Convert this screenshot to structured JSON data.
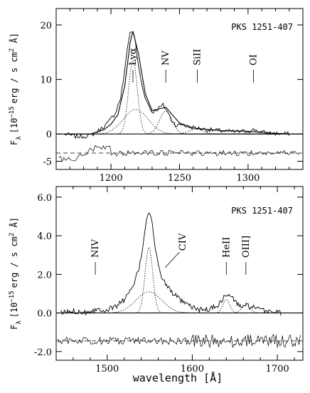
{
  "figure": {
    "xlabel": "wavelength [Å]"
  },
  "chart_data": [
    {
      "type": "line",
      "title": "PKS 1251-407",
      "ylabel_symbol": "F",
      "ylabel_sub": "λ",
      "ylabel_units": "[10",
      "ylabel_exp": "−15",
      "ylabel_rest": "erg / s cm",
      "ylabel_exp2": "2",
      "ylabel_end": " Å]",
      "xlim": [
        1160,
        1340
      ],
      "ylim": [
        -6.5,
        23
      ],
      "x_ticks": [
        1200,
        1250,
        1300
      ],
      "y_ticks": [
        20,
        10,
        0,
        -5
      ],
      "zero_line": 0,
      "residual_baseline": -3.5,
      "lines": [
        {
          "label": "Lyα",
          "x": 1216
        },
        {
          "label": "NV",
          "x": 1240
        },
        {
          "label": "SiII",
          "x": 1263
        },
        {
          "label": "OI",
          "x": 1304
        }
      ],
      "series": [
        {
          "x": [
            1166,
            1175,
            1185,
            1192,
            1198,
            1203,
            1207,
            1210,
            1212,
            1214,
            1216,
            1218,
            1220,
            1223,
            1226,
            1230,
            1234,
            1238,
            1241,
            1244,
            1248,
            1252,
            1256,
            1260,
            1265,
            1270,
            1280,
            1290,
            1300,
            1305,
            1310,
            1320,
            1330
          ],
          "values": [
            0,
            -0.5,
            -0.3,
            0.8,
            2.1,
            3.8,
            6.6,
            11.5,
            16.0,
            18.6,
            18.9,
            16.5,
            12.4,
            8.5,
            6.0,
            4.0,
            4.6,
            5.3,
            4.2,
            2.6,
            1.5,
            1.8,
            1.3,
            1.2,
            1.0,
            0.8,
            0.6,
            0.4,
            0.5,
            0.8,
            0.3,
            0.1,
            0
          ]
        },
        {
          "x": [
            1166,
            1185,
            1195,
            1200,
            1205,
            1210,
            1214,
            1216,
            1220,
            1225,
            1230,
            1240,
            1250,
            1260,
            1280,
            1300,
            1320,
            1330
          ],
          "values": [
            0,
            0,
            0.8,
            1.8,
            3.5,
            8.8,
            16.8,
            18.8,
            14.8,
            7.4,
            4.3,
            4.9,
            2.0,
            1.1,
            0.6,
            0.5,
            0.1,
            0
          ]
        }
      ]
    },
    {
      "type": "line",
      "title": "PKS 1251-407",
      "ylabel_symbol": "F",
      "ylabel_sub": "λ",
      "ylabel_units": "[10",
      "ylabel_exp": "−15",
      "ylabel_rest": "erg / s cm",
      "ylabel_exp2": "2",
      "ylabel_end": " Å]",
      "xlim": [
        1440,
        1730
      ],
      "ylim": [
        -2.45,
        6.55
      ],
      "x_ticks": [
        1500,
        1600,
        1700
      ],
      "y_ticks": [
        "6.0",
        "4.0",
        "2.0",
        "0.0",
        "-2.0"
      ],
      "zero_line": 0,
      "residual_baseline": -1.45,
      "lines": [
        {
          "label": "NIV",
          "x": 1486
        },
        {
          "label": "CIV",
          "x": 1549
        },
        {
          "label": "HeII",
          "x": 1640
        },
        {
          "label": "OIII]",
          "x": 1663
        }
      ],
      "series": [
        {
          "x": [
            1445,
            1460,
            1475,
            1490,
            1500,
            1510,
            1520,
            1530,
            1538,
            1543,
            1546,
            1549,
            1552,
            1556,
            1560,
            1565,
            1570,
            1580,
            1590,
            1600,
            1610,
            1620,
            1630,
            1637,
            1642,
            1648,
            1655,
            1662,
            1670,
            1680,
            1690,
            1700,
            1705
          ],
          "values": [
            0,
            0.1,
            0.05,
            0.2,
            0.15,
            0.35,
            0.7,
            1.3,
            2.4,
            3.8,
            4.9,
            5.3,
            4.9,
            3.5,
            2.4,
            1.8,
            1.4,
            0.9,
            0.5,
            0.3,
            0.15,
            0.2,
            0.4,
            0.8,
            0.95,
            0.75,
            0.35,
            0.4,
            0.3,
            0.15,
            0.1,
            0.05,
            0
          ]
        }
      ]
    }
  ]
}
